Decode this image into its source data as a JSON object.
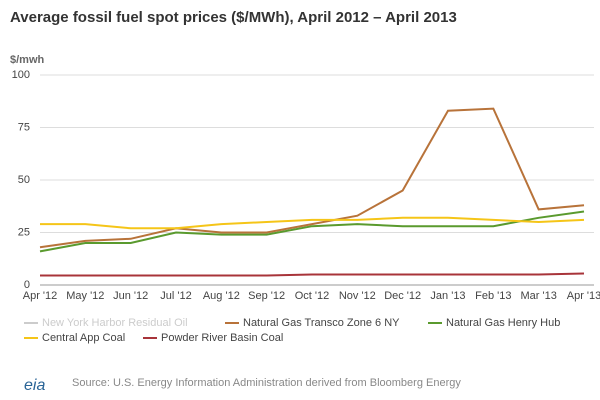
{
  "chart_data": {
    "type": "line",
    "title": "Average fossil fuel spot prices ($/MWh), April 2012 – April 2013",
    "y_label": "$/mwh",
    "categories": [
      "Apr '12",
      "May '12",
      "Jun '12",
      "Jul '12",
      "Aug '12",
      "Sep '12",
      "Oct '12",
      "Nov '12",
      "Dec '12",
      "Jan '13",
      "Feb '13",
      "Mar '13",
      "Apr '13"
    ],
    "series": [
      {
        "name": "New York Harbor Residual Oil",
        "color": "#cccccc",
        "values": [
          null,
          null,
          null,
          null,
          null,
          null,
          null,
          null,
          null,
          null,
          null,
          null,
          null
        ]
      },
      {
        "name": "Natural Gas Transco Zone 6 NY",
        "color": "#b8733a",
        "values": [
          18,
          21,
          22,
          27,
          25,
          25,
          29,
          33,
          45,
          83,
          84,
          36,
          38
        ]
      },
      {
        "name": "Natural Gas Henry Hub",
        "color": "#5a9a2e",
        "values": [
          16,
          20,
          20,
          25,
          24,
          24,
          28,
          29,
          28,
          28,
          28,
          32,
          35
        ]
      },
      {
        "name": "Central App Coal",
        "color": "#f5c518",
        "values": [
          29,
          29,
          27,
          27,
          29,
          30,
          31,
          31,
          32,
          32,
          31,
          30,
          31
        ]
      },
      {
        "name": "Powder River Basin Coal",
        "color": "#a8343a",
        "values": [
          4.5,
          4.5,
          4.5,
          4.5,
          4.5,
          4.5,
          5,
          5,
          5,
          5,
          5,
          5,
          5.5
        ]
      }
    ],
    "ylim": [
      0,
      100
    ],
    "yticks": [
      0,
      25,
      50,
      75,
      100
    ],
    "grid": true,
    "source": "Source: U.S. Energy Information Administration derived from Bloomberg Energy",
    "logo": "eia"
  }
}
